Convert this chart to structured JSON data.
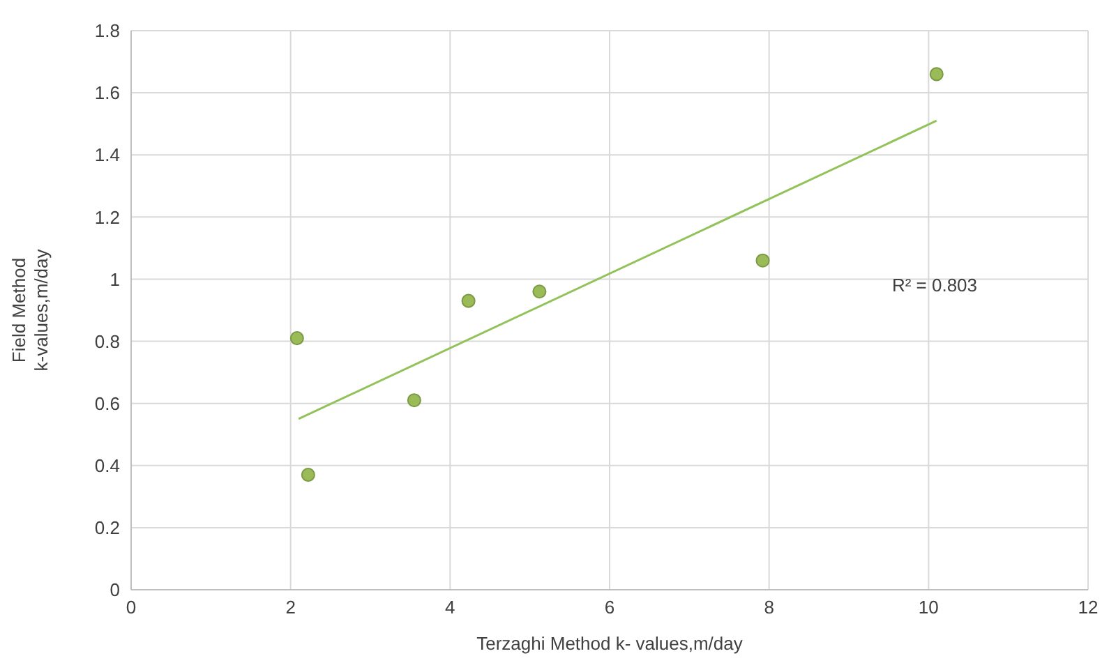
{
  "chart_data": {
    "type": "scatter",
    "xlabel": "Terzaghi  Method k- values,m/day",
    "ylabel": "Field Method\nk-values,m/day",
    "xlim": [
      0,
      12
    ],
    "xticks": [
      0,
      2,
      4,
      6,
      8,
      10,
      12
    ],
    "ylim": [
      0,
      1.8
    ],
    "yticks": [
      0,
      0.2,
      0.4,
      0.6,
      0.8,
      1,
      1.2,
      1.4,
      1.6,
      1.8
    ],
    "grid": true,
    "series": [
      {
        "marker": "circle",
        "color": "#9bbb59",
        "x": [
          2.08,
          2.22,
          3.55,
          4.23,
          5.12,
          7.92,
          10.1
        ],
        "values": [
          0.81,
          0.37,
          0.61,
          0.93,
          0.96,
          1.06,
          1.66
        ]
      },
      {
        "type": "line",
        "color": "#92c35a",
        "x": [
          2.1,
          10.1
        ],
        "values": [
          0.55,
          1.51
        ]
      }
    ],
    "annotations": [
      "R² = 0.803"
    ]
  }
}
